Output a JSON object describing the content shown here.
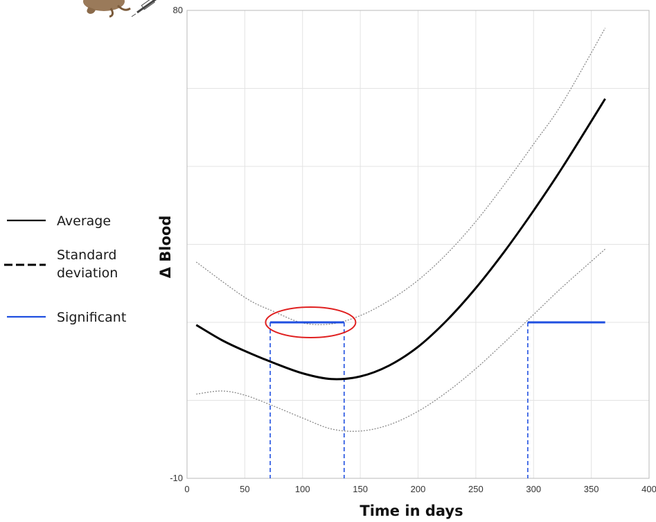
{
  "chart_data": {
    "type": "line",
    "xlabel": "Time in days",
    "ylabel": "Δ Blood",
    "xlim": [
      0,
      400
    ],
    "ylim": [
      -10,
      80
    ],
    "xticks": [
      0,
      50,
      100,
      150,
      200,
      250,
      300,
      350,
      400
    ],
    "yticks": [
      -10,
      5,
      20,
      35,
      50,
      65,
      80
    ],
    "ytick_labels": {
      "80": "80",
      "-10": "-10"
    },
    "grid": true,
    "legend": {
      "position": "left",
      "entries": [
        {
          "label": "Average",
          "style": "solid",
          "color": "#000000"
        },
        {
          "label": "Standard\ndeviation",
          "style": "dashed",
          "color": "#000000"
        },
        {
          "label": "Significant",
          "style": "solid",
          "color": "#1f4fe0"
        }
      ]
    },
    "series": [
      {
        "name": "Average",
        "style": "solid",
        "color": "#000000",
        "x": [
          8,
          30,
          50,
          75,
          100,
          125,
          150,
          175,
          200,
          225,
          250,
          275,
          300,
          325,
          362
        ],
        "y": [
          19.5,
          16.6,
          14.5,
          12.2,
          10.2,
          9.1,
          9.6,
          11.7,
          15.3,
          20.4,
          26.6,
          33.7,
          41.5,
          49.8,
          63.0
        ]
      },
      {
        "name": "Standard deviation",
        "style": "dotted",
        "color": "#888888",
        "x": [
          8,
          50,
          75,
          100,
          125,
          150,
          175,
          200,
          225,
          250,
          275,
          300,
          325,
          362
        ],
        "y": [
          31.6,
          24.8,
          22.1,
          19.9,
          19.7,
          21.3,
          24.2,
          28.1,
          33.2,
          39.4,
          46.6,
          54.3,
          62.2,
          76.6
        ]
      },
      {
        "name": "Standard deviation",
        "style": "dotted",
        "color": "#888888",
        "x": [
          8,
          30,
          50,
          75,
          100,
          125,
          150,
          175,
          200,
          225,
          250,
          275,
          300,
          325,
          362
        ],
        "y": [
          6.2,
          6.8,
          6.0,
          3.9,
          1.6,
          -0.5,
          -0.9,
          0.3,
          2.9,
          6.6,
          11.1,
          16.2,
          21.5,
          26.8,
          34.1
        ]
      }
    ],
    "significant_segments": [
      {
        "x": [
          72,
          136
        ],
        "y": 20
      },
      {
        "x": [
          295,
          362
        ],
        "y": 20
      }
    ],
    "significant_markers_x": [
      72,
      136,
      295
    ],
    "highlight_ellipse": {
      "x_center": 107,
      "y_center": 20,
      "color": "#e02020"
    }
  }
}
